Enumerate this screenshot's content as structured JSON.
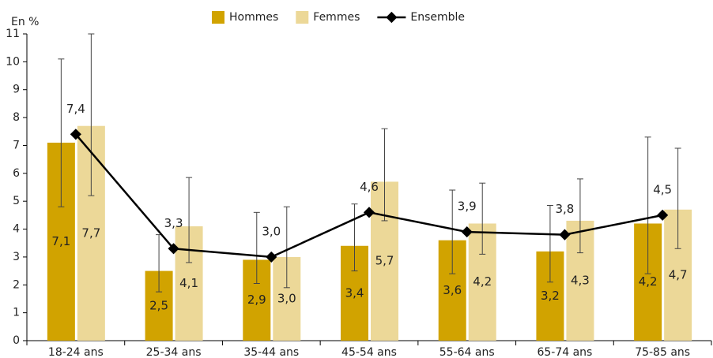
{
  "chart_data": {
    "type": "bar_line",
    "y_label": "En %",
    "categories": [
      "18-24 ans",
      "25-34 ans",
      "35-44 ans",
      "45-54 ans",
      "55-64 ans",
      "65-74 ans",
      "75-85 ans"
    ],
    "series": [
      {
        "name": "Hommes",
        "type": "bar",
        "color": "#d1a300",
        "values": [
          7.1,
          2.5,
          2.9,
          3.4,
          3.6,
          3.2,
          4.2
        ],
        "value_labels": [
          "7,1",
          "2,5",
          "2,9",
          "3,4",
          "3,6",
          "3,2",
          "4,2"
        ],
        "ci_low": [
          4.8,
          1.75,
          2.05,
          2.5,
          2.4,
          2.1,
          2.4
        ],
        "ci_high": [
          10.1,
          3.8,
          4.6,
          4.9,
          5.4,
          4.85,
          7.3
        ]
      },
      {
        "name": "Femmes",
        "type": "bar",
        "color": "#ecd898",
        "values": [
          7.7,
          4.1,
          3.0,
          5.7,
          4.2,
          4.3,
          4.7
        ],
        "value_labels": [
          "7,7",
          "4,1",
          "3,0",
          "5,7",
          "4,2",
          "4,3",
          "4,7"
        ],
        "ci_low": [
          5.2,
          2.8,
          1.9,
          4.3,
          3.1,
          3.15,
          3.3
        ],
        "ci_high": [
          11.0,
          5.85,
          4.8,
          7.6,
          5.65,
          5.8,
          6.9
        ]
      },
      {
        "name": "Ensemble",
        "type": "line",
        "color": "#000000",
        "values": [
          7.4,
          3.3,
          3.0,
          4.6,
          3.9,
          3.8,
          4.5
        ],
        "value_labels": [
          "7,4",
          "3,3",
          "3,0",
          "4,6",
          "3,9",
          "3,8",
          "4,5"
        ]
      }
    ],
    "ylim": [
      0,
      11
    ],
    "yticks": [
      0,
      1,
      2,
      3,
      4,
      5,
      6,
      7,
      8,
      9,
      10,
      11
    ],
    "grid": false,
    "legend": "top"
  }
}
